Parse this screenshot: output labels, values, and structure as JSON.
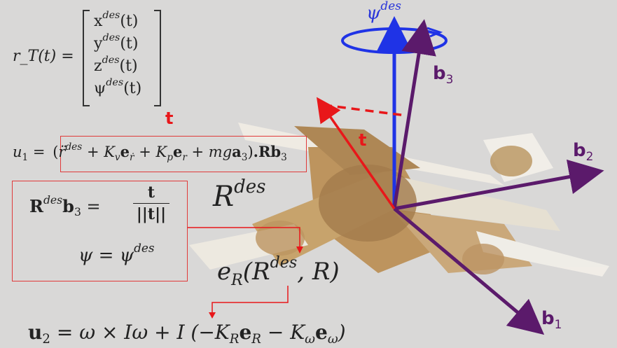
{
  "traj": {
    "lhs": "r_T(t) =",
    "entries": [
      {
        "base": "x",
        "sup": "des",
        "arg": "(t)"
      },
      {
        "base": "y",
        "sup": "des",
        "arg": "(t)"
      },
      {
        "base": "z",
        "sup": "des",
        "arg": "(t)"
      },
      {
        "base": "ψ",
        "sup": "des",
        "arg": "(t)"
      }
    ]
  },
  "thrust_label_top": "t",
  "u1": {
    "lhs_base": "u",
    "lhs_sub": "1",
    "equals": "=",
    "term_open": "(",
    "rddot": "r̈",
    "rddot_sup": "des",
    "plus1": "+ K",
    "kv_sub": "v",
    "ev": "e",
    "ev_sub": "ṙ",
    "plus2": "+ K",
    "kp_sub": "p",
    "ep": "e",
    "ep_sub": "r",
    "plus3": "+ mg",
    "a": "a",
    "a_sub": "3",
    "term_close": ")",
    "tail_R": ".Rb",
    "tail_sub": "3"
  },
  "rdes_eq": {
    "R": "R",
    "R_sup": "des",
    "b": "b",
    "b_sub": "3",
    "equals": "=",
    "num": "t",
    "den": "||t||"
  },
  "psi_eq": {
    "lhs": "ψ = ψ",
    "sup": "des"
  },
  "rdes_big": {
    "base": "R",
    "sup": "des"
  },
  "err": {
    "base": "e",
    "sub": "R",
    "open": "(R",
    "sup": "des",
    "close": ", R)"
  },
  "u2": {
    "lhs": "u",
    "lhs_sub": "2",
    "rhs1": "= ω × Iω + I",
    "open": "(−K",
    "kr_sub": "R",
    "er": "e",
    "er_sub": "R",
    "minus": "− K",
    "kw_sub": "ω",
    "ew": "e",
    "ew_sub": "ω",
    "close": ")"
  },
  "axes": {
    "psi": {
      "base": "ψ",
      "sup": "des"
    },
    "b1": {
      "base": "b",
      "sub": "1"
    },
    "b2": {
      "base": "b",
      "sub": "2"
    },
    "b3": {
      "base": "b",
      "sub": "3"
    },
    "t": "t"
  },
  "colors": {
    "red": "#e8171a",
    "blue": "#1f33e6",
    "purple": "#5b1a6b",
    "box": "#e03a3a"
  }
}
